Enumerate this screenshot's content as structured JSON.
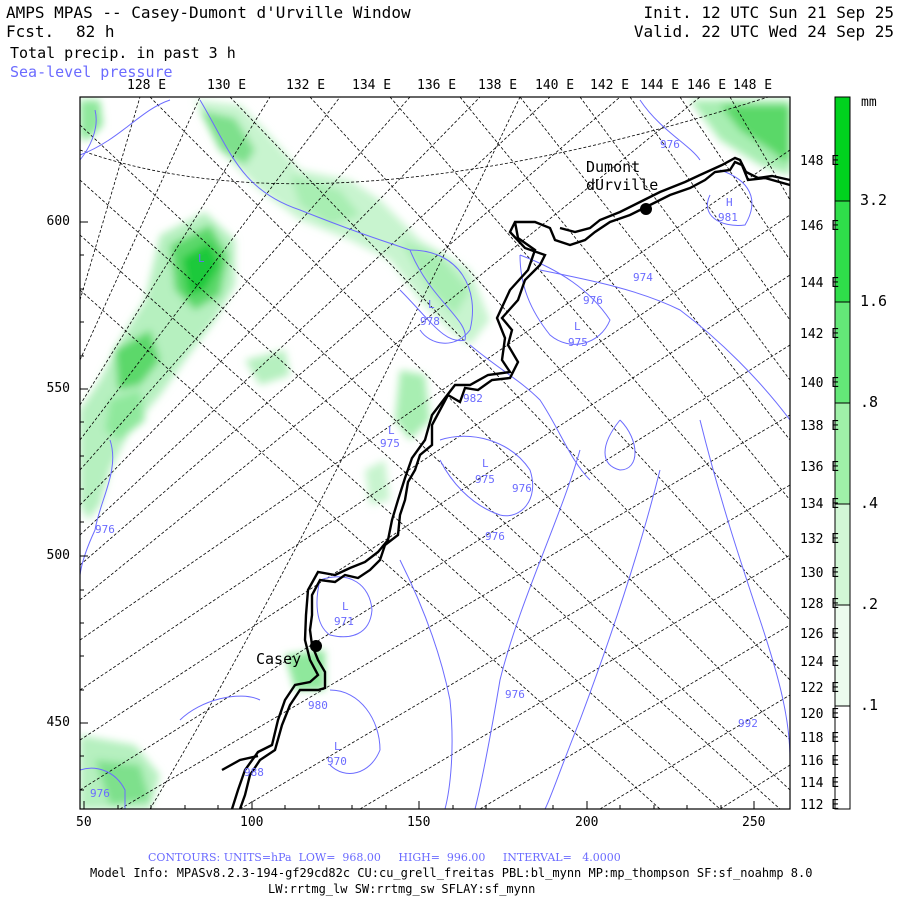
{
  "header": {
    "title": "AMPS MPAS -- Casey-Dumont d'Urville Window",
    "fcst_label": "Fcst.",
    "fcst_value": "82 h",
    "field": "Total precip. in past 3 h",
    "overlay": "Sea-level pressure",
    "init": "Init. 12 UTC Sun 21 Sep 25",
    "valid": "Valid. 22 UTC Wed 24 Sep 25"
  },
  "top_longitudes": [
    "128 E",
    "130 E",
    "132 E",
    "134 E",
    "136 E",
    "138 E",
    "140 E",
    "142 E",
    "144 E",
    "146 E",
    "148 E"
  ],
  "right_longitudes": [
    "148 E",
    "146 E",
    "144 E",
    "142 E",
    "140 E",
    "138 E",
    "136 E",
    "134 E",
    "132 E",
    "130 E",
    "128 E",
    "126 E",
    "124 E",
    "122 E",
    "120 E",
    "118 E",
    "116 E",
    "114 E",
    "112 E"
  ],
  "left_axis": [
    "600",
    "550",
    "500",
    "450"
  ],
  "bottom_axis": [
    "50",
    "100",
    "150",
    "200",
    "250"
  ],
  "stations": [
    {
      "name": "Dumont\ndUrville"
    },
    {
      "name": "Casey"
    }
  ],
  "pressure_labels": [
    "976",
    "981",
    "974",
    "976",
    "975",
    "978",
    "982",
    "975",
    "975",
    "976",
    "976",
    "971",
    "976",
    "980",
    "992",
    "970",
    "976",
    "976",
    "988"
  ],
  "low_marks": [
    "L",
    "L",
    "L",
    "L",
    "L",
    "L",
    "L"
  ],
  "high_marks": [
    "H"
  ],
  "colorbar": {
    "unit": "mm",
    "ticks": [
      "3.2",
      "1.6",
      ".8",
      ".4",
      ".2",
      ".1"
    ],
    "colors": [
      "#00d21e",
      "#2fde4a",
      "#64e878",
      "#9ff0a8",
      "#d2f7d6",
      "#ecfbee",
      "#ffffff"
    ]
  },
  "footer": {
    "contours": "CONTOURS: UNITS=hPa  LOW=  968.00     HIGH=  996.00     INTERVAL=   4.0000",
    "model_info": "Model Info: MPASv8.2.3-194-gf29cd82c CU:cu_grell_freitas PBL:bl_mynn MP:mp_thompson SF:sf_noahmp 8.0",
    "physics": "LW:rrtmg_lw SW:rrtmg_sw SFLAY:sf_mynn"
  }
}
